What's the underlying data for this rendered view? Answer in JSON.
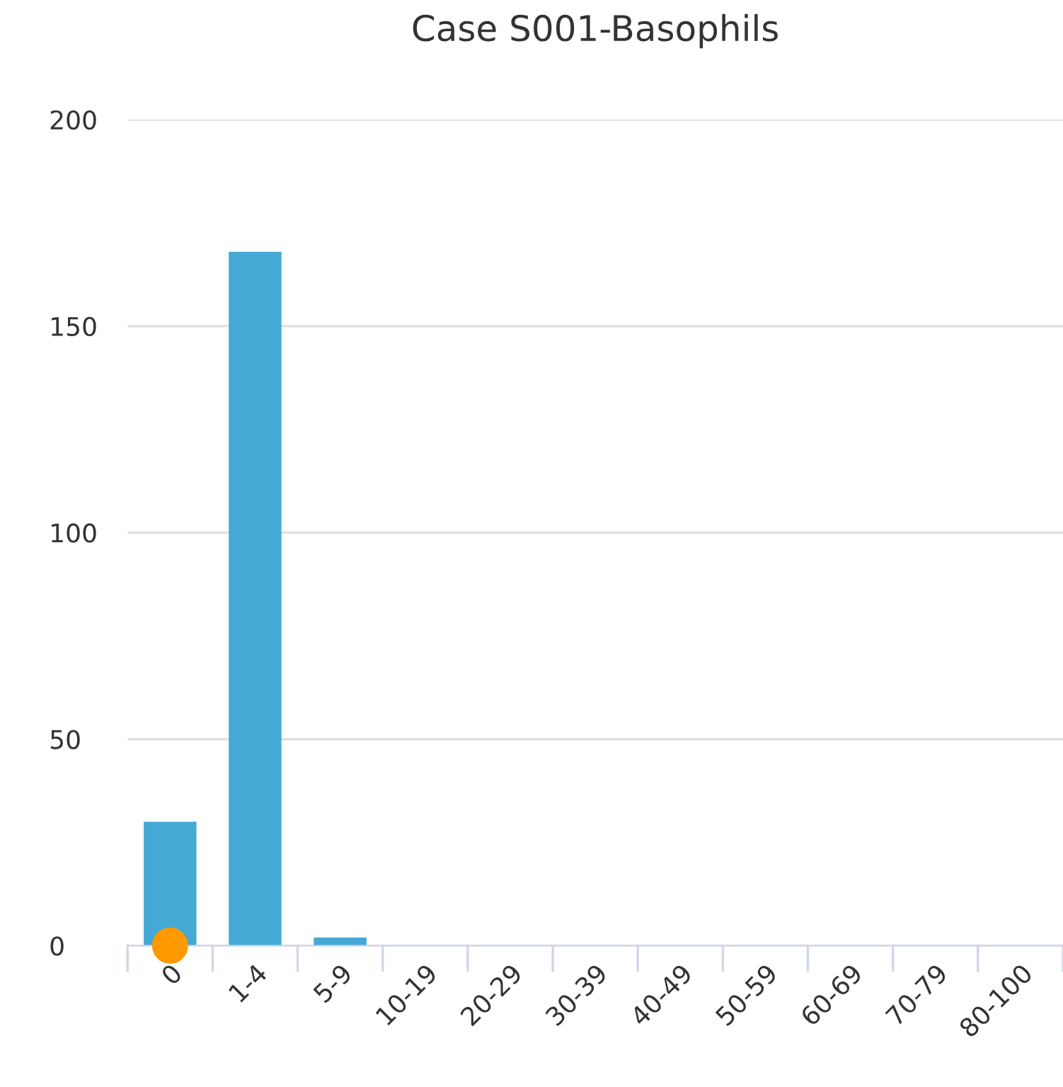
{
  "chart_data": {
    "type": "bar",
    "title": "Case S001-Basophils",
    "categories": [
      "0",
      "1-4",
      "5-9",
      "10-19",
      "20-29",
      "30-39",
      "40-49",
      "50-59",
      "60-69",
      "70-79",
      "80-100"
    ],
    "series": [
      {
        "color": "#45a9d6",
        "values": [
          30,
          168,
          2,
          0,
          0,
          0,
          0,
          0,
          0,
          0,
          0
        ]
      },
      {
        "type": "scatter",
        "color": "#ff9900",
        "x": [
          "0"
        ],
        "values": [
          0
        ]
      }
    ],
    "ylim": [
      0,
      200
    ],
    "yticks": [
      0,
      50,
      100,
      150,
      200
    ],
    "grid": "y",
    "legend": false,
    "marker": "circle"
  }
}
